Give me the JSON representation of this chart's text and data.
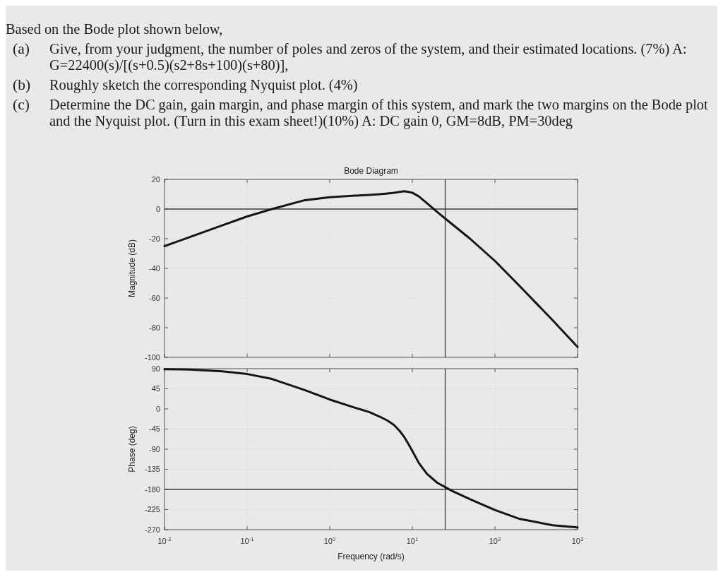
{
  "chart_data": [
    {
      "type": "line",
      "title": "Bode Diagram",
      "ylabel": "Magnitude (dB)",
      "annotations": [
        "Based on the Bode plot shown below,",
        "(a) Give, from your judgment, the number of poles and zeros of the system, and their estimated locations. (7%) A: G=22400(s)/[(s+0.5)(s2+8s+100)(s+80)],",
        "(b) Roughly sketch the corresponding Nyquist plot. (4%)",
        "(c) Determine the DC gain, gain margin, and phase margin of this system, and mark the two margins on the Bode plot and the Nyquist plot. (Turn in this exam sheet!)(10%) A: DC gain 0, GM=8dB, PM=30deg"
      ],
      "x": [
        0.01,
        0.02,
        0.05,
        0.1,
        0.2,
        0.5,
        1,
        2,
        3,
        4,
        5,
        6,
        7,
        8,
        9,
        10,
        12,
        15,
        20,
        30,
        50,
        100,
        200,
        500,
        1000
      ],
      "values": [
        -25,
        -19,
        -11,
        -5,
        0,
        6,
        8,
        9,
        9.5,
        10,
        10.5,
        11,
        11.5,
        12,
        11.5,
        11,
        8.5,
        4,
        -2,
        -10,
        -20,
        -35,
        -52,
        -75,
        -93
      ],
      "color": "#151515",
      "log": "x",
      "xlim": [
        0.01,
        1000
      ],
      "xticks": [
        {
          "value": 0.01,
          "label": null
        },
        {
          "value": 0.1,
          "label": null
        },
        {
          "value": 1,
          "label": null
        },
        {
          "value": 10,
          "label": null
        },
        {
          "value": 100,
          "label": null
        },
        {
          "value": 1000,
          "label": null
        }
      ],
      "ylim": [
        -100,
        20
      ],
      "yticks": [
        -100,
        -80,
        -60,
        -40,
        -20,
        0,
        20
      ],
      "tick_labels": "y",
      "grid": true,
      "ref_lines": [
        {
          "axis": "y",
          "value": 0,
          "color": "#3a3a3a"
        },
        {
          "axis": "x",
          "value": 25,
          "color": "#3a3a3a"
        }
      ]
    },
    {
      "type": "line",
      "ylabel": "Phase (deg)",
      "xlabel": "Frequency (rad/s)",
      "x": [
        0.01,
        0.02,
        0.05,
        0.1,
        0.2,
        0.5,
        1,
        2,
        3,
        4,
        5,
        6,
        7,
        8,
        9,
        10,
        12,
        15,
        20,
        30,
        50,
        100,
        200,
        500,
        1000
      ],
      "values": [
        89,
        88,
        84,
        78,
        67,
        42,
        21,
        3,
        -7,
        -17,
        -26,
        -36,
        -49,
        -63,
        -79,
        -94,
        -121,
        -145,
        -165,
        -183,
        -202,
        -226,
        -246,
        -260,
        -265
      ],
      "color": "#151515",
      "log": "x",
      "xlim": [
        0.01,
        1000
      ],
      "xticks": [
        {
          "value": 0.01,
          "label": "10$^{-2}$"
        },
        {
          "value": 0.1,
          "label": "10$^{-1}$"
        },
        {
          "value": 1,
          "label": "10$^{0}$"
        },
        {
          "value": 10,
          "label": "10$^{1}$"
        },
        {
          "value": 100,
          "label": "10$^{2}$"
        },
        {
          "value": 1000,
          "label": "10$^{3}$"
        }
      ],
      "ylim": [
        -270,
        90
      ],
      "yticks": [
        -270,
        -225,
        -180,
        -135,
        -90,
        -45,
        0,
        45,
        90
      ],
      "grid": true,
      "ref_lines": [
        {
          "axis": "y",
          "value": -180,
          "color": "#3a3a3a"
        },
        {
          "axis": "x",
          "value": 25,
          "color": "#3a3a3a"
        }
      ]
    }
  ]
}
